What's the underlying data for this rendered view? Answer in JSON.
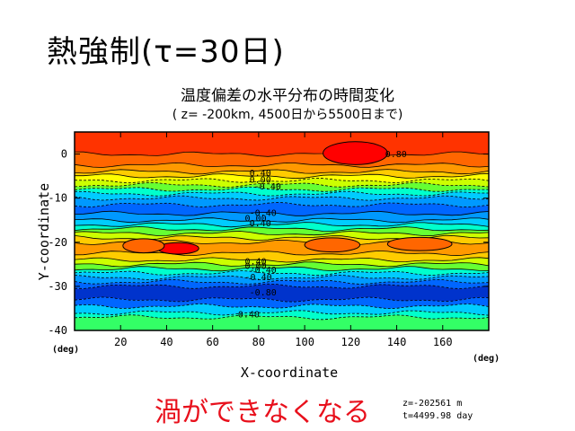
{
  "slide": {
    "title": "熱強制(τ=30日)",
    "caption": "渦ができなくなる",
    "meta_z": "z=-202561 m",
    "meta_t": "t=4499.98 day"
  },
  "chart_data": {
    "type": "heatmap",
    "title": "温度偏差の水平分布の時間変化",
    "subtitle": "( z= -200km, 4500日から5500日まで)",
    "xlabel": "X-coordinate",
    "ylabel": "Y-coordinate",
    "x_unit": "(deg)",
    "y_unit": "(deg)",
    "xlim": [
      0,
      180
    ],
    "ylim": [
      -40,
      5
    ],
    "x_ticks": [
      20,
      40,
      60,
      80,
      100,
      120,
      140,
      160
    ],
    "y_ticks": [
      0,
      -10,
      -20,
      -30,
      -40
    ],
    "bands": [
      {
        "y_top": 5,
        "y_bottom": 0,
        "color": "#ff3300"
      },
      {
        "y_top": 0,
        "y_bottom": -2.5,
        "color": "#ff6600"
      },
      {
        "y_top": -2.5,
        "y_bottom": -4,
        "color": "#ff9900"
      },
      {
        "y_top": -4,
        "y_bottom": -5,
        "color": "#ffcc00"
      },
      {
        "y_top": -5,
        "y_bottom": -6,
        "color": "#ffff00"
      },
      {
        "y_top": -6,
        "y_bottom": -7,
        "color": "#ccff00"
      },
      {
        "y_top": -7,
        "y_bottom": -8,
        "color": "#66ff33"
      },
      {
        "y_top": -8,
        "y_bottom": -9,
        "color": "#00ffcc"
      },
      {
        "y_top": -9,
        "y_bottom": -10,
        "color": "#00ccff"
      },
      {
        "y_top": -10,
        "y_bottom": -11.5,
        "color": "#0099ff"
      },
      {
        "y_top": -11.5,
        "y_bottom": -13.5,
        "color": "#0066ff"
      },
      {
        "y_top": -13.5,
        "y_bottom": -15,
        "color": "#0099ff"
      },
      {
        "y_top": -15,
        "y_bottom": -16,
        "color": "#00ccff"
      },
      {
        "y_top": -16,
        "y_bottom": -17,
        "color": "#00ffcc"
      },
      {
        "y_top": -17,
        "y_bottom": -18,
        "color": "#66ff33"
      },
      {
        "y_top": -18,
        "y_bottom": -19,
        "color": "#ccff00"
      },
      {
        "y_top": -19,
        "y_bottom": -20,
        "color": "#ffcc00"
      },
      {
        "y_top": -20,
        "y_bottom": -22.5,
        "color": "#ff9900"
      },
      {
        "y_top": -22.5,
        "y_bottom": -24,
        "color": "#ffcc00"
      },
      {
        "y_top": -24,
        "y_bottom": -25,
        "color": "#ccff00"
      },
      {
        "y_top": -25,
        "y_bottom": -26,
        "color": "#66ff33"
      },
      {
        "y_top": -26,
        "y_bottom": -27,
        "color": "#00ffcc"
      },
      {
        "y_top": -27,
        "y_bottom": -28,
        "color": "#00ccff"
      },
      {
        "y_top": -28,
        "y_bottom": -29,
        "color": "#0099ff"
      },
      {
        "y_top": -29,
        "y_bottom": -30,
        "color": "#0066ff"
      },
      {
        "y_top": -30,
        "y_bottom": -33,
        "color": "#0033cc"
      },
      {
        "y_top": -33,
        "y_bottom": -34.5,
        "color": "#0066ff"
      },
      {
        "y_top": -34.5,
        "y_bottom": -36,
        "color": "#00ccff"
      },
      {
        "y_top": -36,
        "y_bottom": -37,
        "color": "#00ffcc"
      },
      {
        "y_top": -37,
        "y_bottom": -40,
        "color": "#33ff66"
      }
    ],
    "features": [
      {
        "name": "warm-core-top",
        "x_center": 122,
        "y_center": 0.2,
        "x_half": 14,
        "y_half": 2.6,
        "color": "#ff0000"
      },
      {
        "name": "warm-core-mid",
        "x_center": 45,
        "y_center": -21.4,
        "x_half": 9,
        "y_half": 1.3,
        "color": "#ff0000"
      },
      {
        "name": "blob-1",
        "x_center": 30,
        "y_center": -20.8,
        "x_half": 9,
        "y_half": 1.6,
        "color": "#ff6600"
      },
      {
        "name": "blob-2",
        "x_center": 112,
        "y_center": -20.6,
        "x_half": 12,
        "y_half": 1.6,
        "color": "#ff6600"
      },
      {
        "name": "blob-3",
        "x_center": 150,
        "y_center": -20.4,
        "x_half": 14,
        "y_half": 1.5,
        "color": "#ff6600"
      }
    ],
    "contour_labels": [
      {
        "text": "0.80",
        "x": 135,
        "y": 0.1
      },
      {
        "text": "0.40",
        "x": 76,
        "y": -4.2
      },
      {
        "text": "0.00",
        "x": 76,
        "y": -5.7
      },
      {
        "text": "-0.40",
        "x": 78,
        "y": -7.2
      },
      {
        "text": "-0.40",
        "x": 76,
        "y": -13.2
      },
      {
        "text": "0.00",
        "x": 74,
        "y": -14.4
      },
      {
        "text": "0.40",
        "x": 76,
        "y": -15.6
      },
      {
        "text": "0.40",
        "x": 74,
        "y": -24.2
      },
      {
        "text": "0.00",
        "x": 74,
        "y": -25.2
      },
      {
        "text": "-0.40",
        "x": 76,
        "y": -26.2
      },
      {
        "text": "-0.40",
        "x": 74,
        "y": -27.8
      },
      {
        "text": "-0.80",
        "x": 76,
        "y": -31.2
      },
      {
        "text": "0.40",
        "x": 71,
        "y": -36.2
      }
    ]
  }
}
